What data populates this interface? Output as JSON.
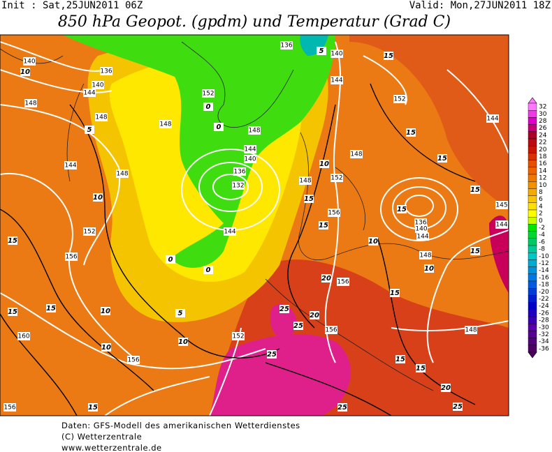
{
  "header": {
    "init": "Init : Sat,25JUN2011 06Z",
    "valid": "Valid: Mon,27JUN2011 18Z",
    "title": "850 hPa Geopot. (gpdm) und Temperatur (Grad C)"
  },
  "colorbar": {
    "labels": [
      32,
      30,
      28,
      26,
      24,
      22,
      20,
      18,
      16,
      14,
      12,
      10,
      8,
      6,
      4,
      2,
      0,
      -2,
      -4,
      -6,
      -8,
      -10,
      -12,
      -14,
      -16,
      -18,
      -20,
      -22,
      -24,
      -26,
      -28,
      -30,
      -32,
      -34,
      -36
    ]
  },
  "geopotential_labels": [
    "140",
    "136",
    "140",
    "144",
    "148",
    "148",
    "148",
    "152",
    "136",
    "140",
    "144",
    "152",
    "148",
    "144",
    "140",
    "136",
    "132",
    "144",
    "148",
    "144",
    "152",
    "156",
    "148",
    "152",
    "156",
    "148",
    "144",
    "136",
    "140",
    "144",
    "148",
    "156",
    "156",
    "152",
    "156",
    "160",
    "156",
    "148",
    "144",
    "145"
  ],
  "temperature_labels": [
    "10",
    "5",
    "10",
    "15",
    "15",
    "15",
    "10",
    "5",
    "10",
    "10",
    "15",
    "0",
    "0",
    "0",
    "0",
    "5",
    "15",
    "15",
    "15",
    "15",
    "15",
    "10",
    "15",
    "10",
    "15",
    "20",
    "20",
    "25",
    "25",
    "25",
    "15",
    "15",
    "20",
    "25",
    "25",
    "15",
    "10",
    "15"
  ],
  "footer": {
    "line1": "Daten: GFS-Modell des amerikanischen Wetterdienstes",
    "line2": "(C) Wetterzentrale",
    "line3": "www.wetterzentrale.de"
  }
}
